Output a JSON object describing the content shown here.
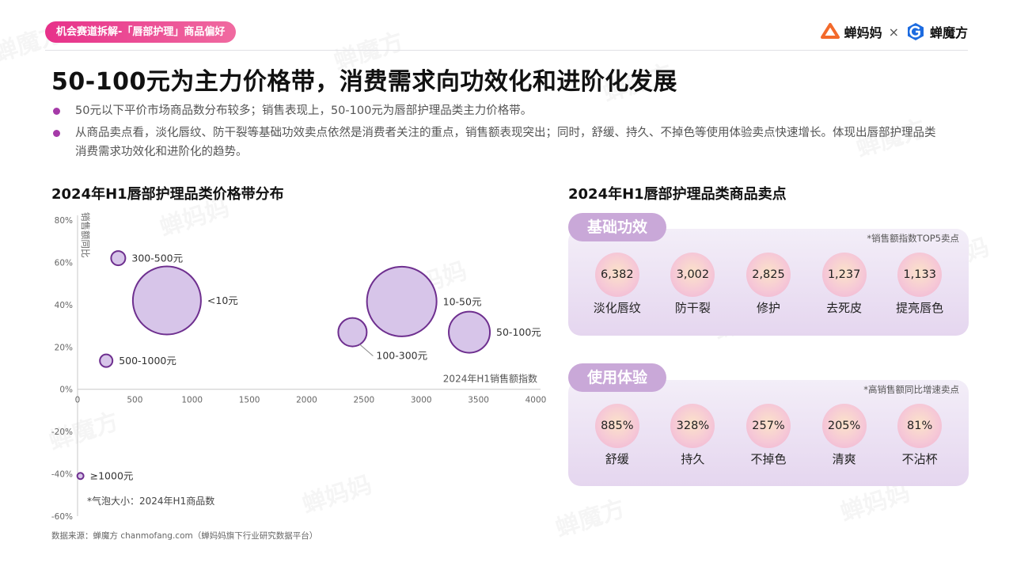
{
  "header": {
    "tag": "机会赛道拆解-「唇部护理」商品偏好",
    "logo_left": "蝉妈妈",
    "logo_times": "×",
    "logo_right": "蝉魔方",
    "accent_color": "#e7318a",
    "logo_left_color": "#f36a2b",
    "logo_right_color": "#1c6be0"
  },
  "title": "50-100元为主力价格带，消费需求向功效化和进阶化发展",
  "bullets": [
    "50元以下平价市场商品数分布较多；销售表现上，50-100元为唇部护理品类主力价格带。",
    "从商品卖点看，淡化唇纹、防干裂等基础功效卖点依然是消费者关注的重点，销售额表现突出；同时，舒缓、持久、不掉色等使用体验卖点快速增长。体现出唇部护理品类消费需求功效化和进阶化的趋势。"
  ],
  "left_section_title": "2024年H1唇部护理品类价格带分布",
  "right_section_title": "2024年H1唇部护理品类商品卖点",
  "chart_data": {
    "type": "scatter",
    "subtype": "bubble",
    "title": "2024年H1唇部护理品类价格带分布",
    "xlabel": "2024年H1销售额指数",
    "ylabel": "销售额同比",
    "xlim": [
      0,
      4000
    ],
    "ylim": [
      -60,
      80
    ],
    "x_ticks": [
      "0",
      "500",
      "1000",
      "1500",
      "2000",
      "2500",
      "3000",
      "3500",
      "4000"
    ],
    "y_ticks": [
      "80%",
      "60%",
      "40%",
      "20%",
      "0%",
      "-20%",
      "-40%",
      "-60%"
    ],
    "bubble_size_note": "*气泡大小：2024年H1商品数",
    "bubble_color": "#d7c5e9",
    "bubble_stroke": "#6e2f8f",
    "series": [
      {
        "label": "300-500元",
        "x": 355,
        "y": 62,
        "size": 9
      },
      {
        "label": "<10元",
        "x": 780,
        "y": 42,
        "size": 43
      },
      {
        "label": "500-1000元",
        "x": 250,
        "y": 13.5,
        "size": 8
      },
      {
        "label": "100-300元",
        "x": 2400,
        "y": 27,
        "size": 18
      },
      {
        "label": "10-50元",
        "x": 2830,
        "y": 41.5,
        "size": 44
      },
      {
        "label": "50-100元",
        "x": 3420,
        "y": 27,
        "size": 26
      },
      {
        "label": "≥1000元",
        "x": 25,
        "y": -41,
        "size": 4
      }
    ]
  },
  "panels": [
    {
      "tab": "基础功效",
      "note": "*销售额指数TOP5卖点",
      "items": [
        {
          "value": "6,382",
          "label": "淡化唇纹"
        },
        {
          "value": "3,002",
          "label": "防干裂"
        },
        {
          "value": "2,825",
          "label": "修护"
        },
        {
          "value": "1,237",
          "label": "去死皮"
        },
        {
          "value": "1,133",
          "label": "提亮唇色"
        }
      ]
    },
    {
      "tab": "使用体验",
      "note": "*高销售额同比增速卖点",
      "items": [
        {
          "value": "885%",
          "label": "舒缓"
        },
        {
          "value": "328%",
          "label": "持久"
        },
        {
          "value": "257%",
          "label": "不掉色"
        },
        {
          "value": "205%",
          "label": "清爽"
        },
        {
          "value": "81%",
          "label": "不沾杯"
        }
      ]
    }
  ],
  "source": "数据来源：蝉魔方 chanmofang.com（蝉妈妈旗下行业研究数据平台）"
}
